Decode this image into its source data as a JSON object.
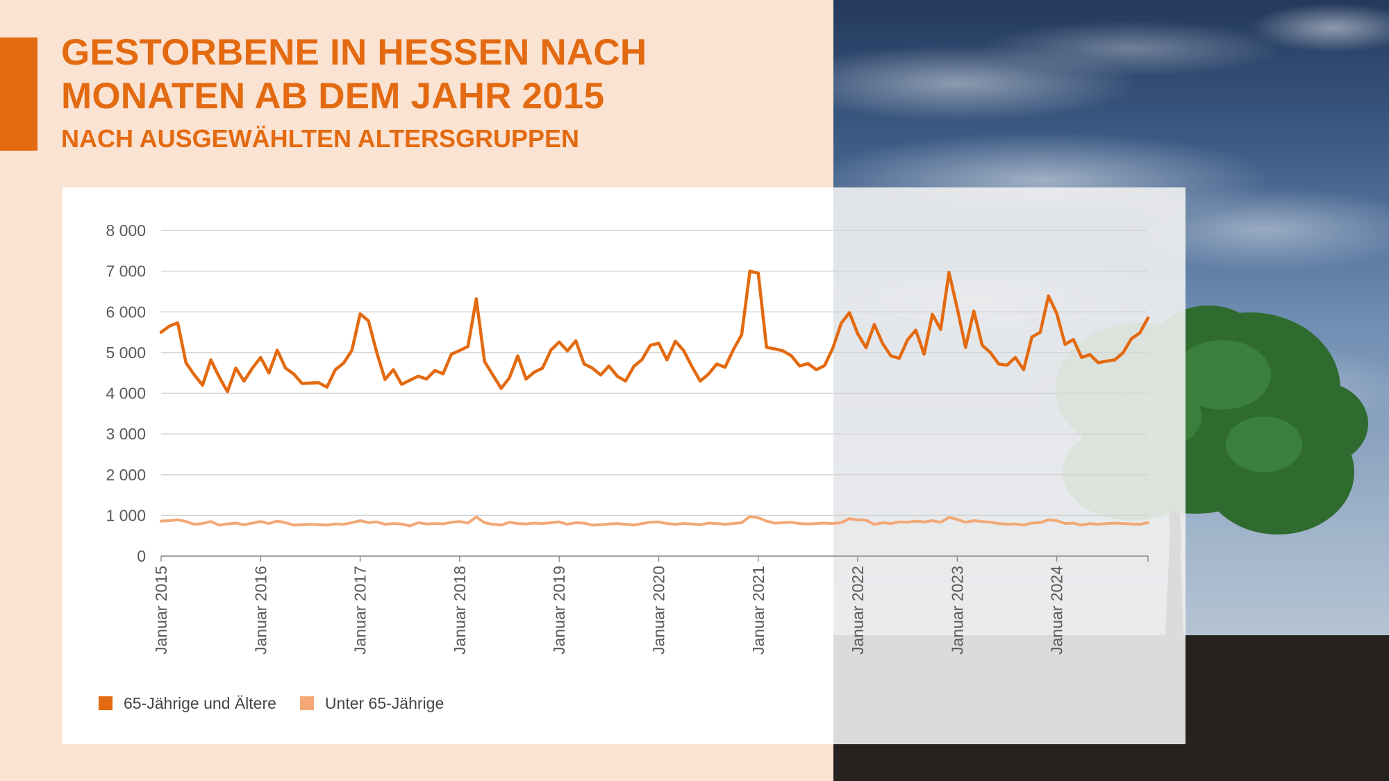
{
  "header": {
    "title": "GESTORBENE IN HESSEN NACH MONATEN AB DEM JAHR 2015",
    "subtitle": "NACH AUSGEWÄHLTEN ALTERSGRUPPEN"
  },
  "colors": {
    "accent": "#e36a10",
    "series_old": "#e36a10",
    "series_young": "#f3a876",
    "background": "#fbe3d3",
    "gridline": "#d4d4d4",
    "text": "#595959"
  },
  "chart_data": {
    "type": "line",
    "title": "GESTORBENE IN HESSEN NACH MONATEN AB DEM JAHR 2015",
    "subtitle": "NACH AUSGEWÄHLTEN ALTERSGRUPPEN",
    "xlabel": "",
    "ylabel": "",
    "ylim": [
      0,
      8000
    ],
    "yticks": [
      0,
      1000,
      2000,
      3000,
      4000,
      5000,
      6000,
      7000,
      8000
    ],
    "ytick_labels": [
      "0",
      "1 000",
      "2 000",
      "3 000",
      "4 000",
      "5 000",
      "6 000",
      "7 000",
      "8 000"
    ],
    "x_start": "2015-01",
    "x_end": "2024-12",
    "xtick_labels": [
      "Januar 2015",
      "Januar 2016",
      "Januar 2017",
      "Januar 2018",
      "Januar 2019",
      "Januar 2020",
      "Januar 2021",
      "Januar 2022",
      "Januar 2023",
      "Januar 2024"
    ],
    "grid": true,
    "legend_position": "bottom-left",
    "series": [
      {
        "name": "65-Jährige und Ältere",
        "color": "#e36a10",
        "values": [
          5500,
          5650,
          5730,
          4750,
          4450,
          4200,
          4820,
          4400,
          4040,
          4620,
          4300,
          4620,
          4880,
          4500,
          5060,
          4620,
          4470,
          4240,
          4250,
          4260,
          4150,
          4580,
          4740,
          5050,
          5950,
          5780,
          5000,
          4340,
          4580,
          4220,
          4320,
          4420,
          4350,
          4560,
          4480,
          4960,
          5050,
          5150,
          6320,
          4780,
          4450,
          4120,
          4380,
          4920,
          4350,
          4520,
          4620,
          5060,
          5260,
          5040,
          5290,
          4720,
          4620,
          4450,
          4670,
          4420,
          4300,
          4660,
          4830,
          5180,
          5230,
          4820,
          5280,
          5050,
          4660,
          4300,
          4470,
          4720,
          4640,
          5070,
          5440,
          7000,
          6950,
          5130,
          5090,
          5040,
          4920,
          4670,
          4730,
          4580,
          4680,
          5110,
          5720,
          5980,
          5460,
          5120,
          5690,
          5220,
          4920,
          4860,
          5310,
          5550,
          4960,
          5940,
          5570,
          6970,
          6080,
          5130,
          6020,
          5180,
          5000,
          4720,
          4690,
          4880,
          4580,
          5380,
          5500,
          6390,
          5960,
          5200,
          5320,
          4880,
          4950,
          4750,
          4790,
          4820,
          5000,
          5340,
          5480,
          5850
        ]
      },
      {
        "name": "Unter 65-Jährige",
        "color": "#f3a876",
        "values": [
          860,
          870,
          890,
          850,
          780,
          800,
          850,
          760,
          790,
          810,
          770,
          810,
          850,
          800,
          860,
          820,
          760,
          770,
          780,
          770,
          760,
          790,
          780,
          820,
          870,
          820,
          840,
          780,
          800,
          790,
          740,
          820,
          790,
          800,
          790,
          830,
          850,
          810,
          960,
          820,
          780,
          760,
          830,
          800,
          790,
          810,
          800,
          820,
          840,
          780,
          820,
          810,
          760,
          770,
          790,
          800,
          780,
          760,
          800,
          830,
          840,
          800,
          780,
          800,
          790,
          770,
          810,
          800,
          780,
          800,
          820,
          970,
          940,
          860,
          810,
          820,
          830,
          800,
          790,
          800,
          810,
          800,
          820,
          920,
          890,
          880,
          780,
          820,
          800,
          840,
          830,
          860,
          840,
          870,
          830,
          950,
          900,
          830,
          870,
          850,
          830,
          800,
          780,
          790,
          760,
          810,
          820,
          890,
          870,
          800,
          810,
          760,
          800,
          780,
          800,
          810,
          800,
          790,
          780,
          820
        ]
      }
    ]
  },
  "legend": {
    "items": [
      {
        "label": "65-Jährige und Ältere",
        "color": "#e36a10"
      },
      {
        "label": "Unter 65-Jährige",
        "color": "#f3a876"
      }
    ]
  }
}
